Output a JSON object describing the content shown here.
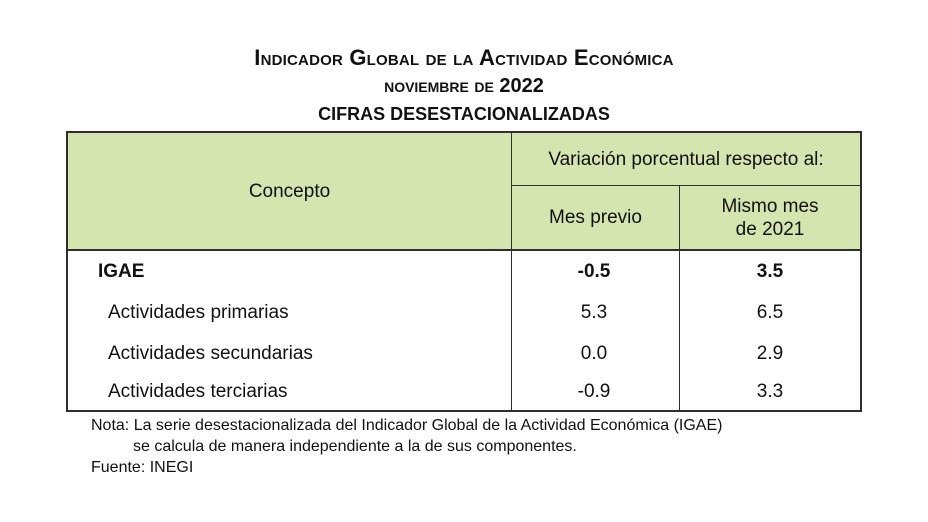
{
  "title": {
    "line1": "Indicador Global de la Actividad Económica",
    "line2": "noviembre de 2022",
    "line3": "CIFRAS DESESTACIONALIZADAS"
  },
  "table": {
    "header_concept": "Concepto",
    "header_group": "Variación porcentual respecto al:",
    "header_col1": "Mes previo",
    "header_col2_line1": "Mismo mes",
    "header_col2_line2": "de 2021",
    "rows": [
      {
        "label": "IGAE",
        "mes_previo": "-0.5",
        "mismo_mes": "3.5"
      },
      {
        "label": "Actividades primarias",
        "mes_previo": "5.3",
        "mismo_mes": "6.5"
      },
      {
        "label": "Actividades secundarias",
        "mes_previo": "0.0",
        "mismo_mes": "2.9"
      },
      {
        "label": "Actividades terciarias",
        "mes_previo": "-0.9",
        "mismo_mes": "3.3"
      }
    ]
  },
  "notes": {
    "nota_line1": "Nota: La serie desestacionalizada del Indicador Global de la Actividad Económica (IGAE)",
    "nota_line2": "se calcula de manera independiente a la de sus componentes.",
    "fuente": "Fuente: INEGI"
  },
  "colors": {
    "header_fill": "#d5e5b0",
    "border": "#2e2e2e"
  }
}
